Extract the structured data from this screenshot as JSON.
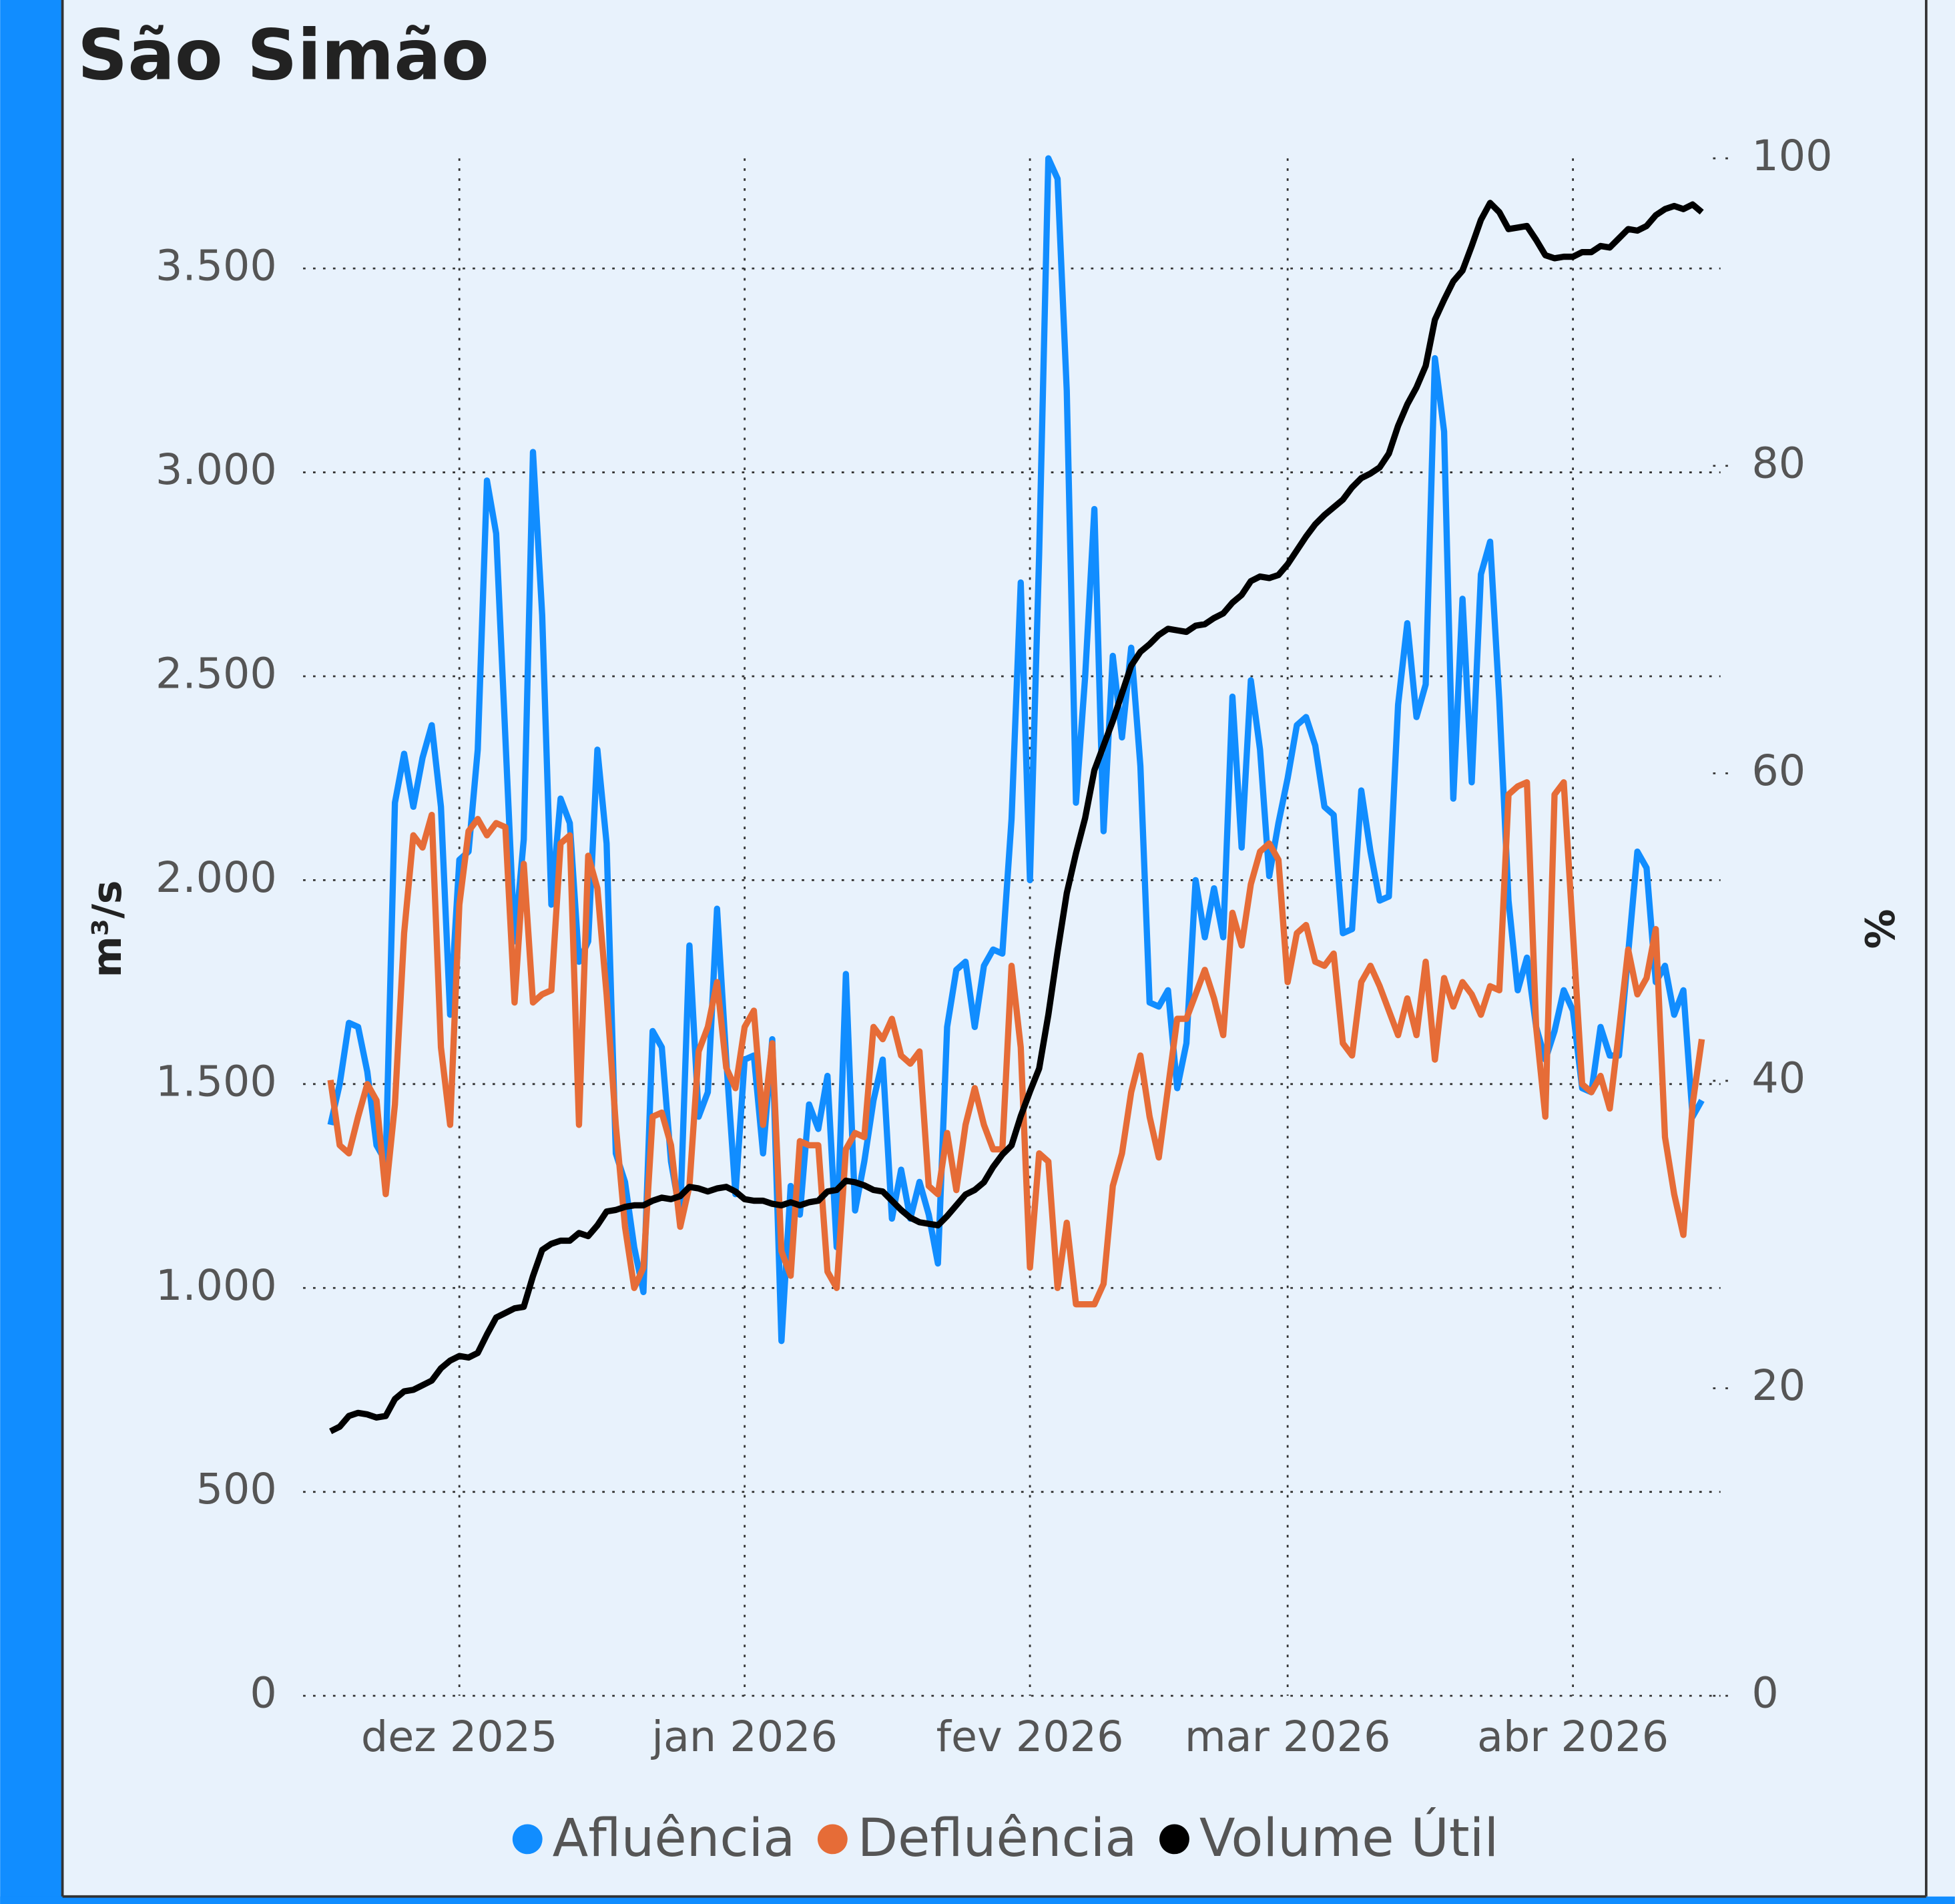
{
  "chart_data": {
    "type": "line",
    "title": "São Simão",
    "y_label": "m³/s",
    "y2_label": "%",
    "grid": true,
    "legend": "bottom",
    "categories": [
      null,
      null,
      null,
      null,
      null,
      null,
      null,
      null,
      null,
      null,
      null,
      null,
      null,
      null,
      "dez 2025",
      null,
      null,
      null,
      null,
      null,
      null,
      null,
      null,
      null,
      null,
      null,
      null,
      null,
      null,
      null,
      null,
      null,
      null,
      null,
      null,
      null,
      null,
      null,
      null,
      null,
      null,
      null,
      null,
      null,
      null,
      "jan 2026",
      null,
      null,
      null,
      null,
      null,
      null,
      null,
      null,
      null,
      null,
      null,
      null,
      null,
      null,
      null,
      null,
      null,
      null,
      null,
      null,
      null,
      null,
      null,
      null,
      null,
      null,
      null,
      null,
      null,
      null,
      "fev 2026",
      null,
      null,
      null,
      null,
      null,
      null,
      null,
      null,
      null,
      null,
      null,
      null,
      null,
      null,
      null,
      null,
      null,
      null,
      null,
      null,
      null,
      null,
      null,
      null,
      null,
      null,
      null,
      "mar 2026",
      null,
      null,
      null,
      null,
      null,
      null,
      null,
      null,
      null,
      null,
      null,
      null,
      null,
      null,
      null,
      null,
      null,
      null,
      null,
      null,
      null,
      null,
      null,
      null,
      null,
      null,
      null,
      null,
      null,
      null,
      "abr 2026",
      null,
      null,
      null,
      null,
      null,
      null,
      null,
      null,
      null,
      null,
      null,
      null,
      null,
      null
    ],
    "ylim": [
      0,
      3770
    ],
    "yticks": [
      0,
      500,
      {
        "value": 1000,
        "label": "1.000"
      },
      {
        "value": 1500,
        "label": "1.500"
      },
      {
        "value": 2000,
        "label": "2.000"
      },
      {
        "value": 2500,
        "label": "2.500"
      },
      {
        "value": 3000,
        "label": "3.000"
      },
      {
        "value": 3500,
        "label": "3.500"
      }
    ],
    "y2lim": [
      0,
      100
    ],
    "y2ticks": [
      0,
      20,
      40,
      60,
      80,
      100
    ],
    "series": [
      {
        "name": "Afluência",
        "color": "#118dff",
        "values": [
          1400,
          1500,
          1650,
          1640,
          1530,
          1350,
          1310,
          2190,
          2310,
          2180,
          2300,
          2380,
          2180,
          1670,
          2050,
          2070,
          2320,
          2980,
          2850,
          2350,
          1850,
          2100,
          3050,
          2650,
          1940,
          2200,
          2140,
          1800,
          1850,
          2320,
          2090,
          1330,
          1260,
          1100,
          990,
          1630,
          1590,
          1310,
          1180,
          1840,
          1420,
          1480,
          1930,
          1560,
          1230,
          1560,
          1570,
          1330,
          1610,
          870,
          1250,
          1180,
          1450,
          1390,
          1520,
          1100,
          1770,
          1190,
          1310,
          1460,
          1560,
          1170,
          1290,
          1170,
          1260,
          1180,
          1060,
          1640,
          1780,
          1800,
          1640,
          1790,
          1830,
          1820,
          2150,
          2730,
          2000,
          2800,
          3770,
          3720,
          3200,
          2190,
          2500,
          2910,
          2120,
          2550,
          2350,
          2570,
          2280,
          1700,
          1690,
          1730,
          1490,
          1600,
          2000,
          1860,
          1980,
          1860,
          2450,
          2080,
          2490,
          2320,
          2010,
          2140,
          2250,
          2380,
          2400,
          2330,
          2180,
          2160,
          1870,
          1880,
          2220,
          2070,
          1950,
          1960,
          2430,
          2630,
          2400,
          2480,
          3280,
          3100,
          2200,
          2690,
          2240,
          2750,
          2830,
          2440,
          1950,
          1730,
          1810,
          1640,
          1560,
          1630,
          1730,
          1680,
          1490,
          1480,
          1640,
          1570,
          1570,
          1820,
          2070,
          2030,
          1750,
          1790,
          1670,
          1730,
          1420,
          1460
        ]
      },
      {
        "name": "Defluência",
        "color": "#e66c37",
        "values": [
          1510,
          1350,
          1330,
          1420,
          1500,
          1460,
          1230,
          1450,
          1870,
          2110,
          2080,
          2160,
          1590,
          1400,
          1940,
          2120,
          2150,
          2110,
          2140,
          2130,
          1700,
          2040,
          1700,
          1720,
          1730,
          2090,
          2110,
          1400,
          2060,
          1980,
          1720,
          1400,
          1150,
          1000,
          1050,
          1420,
          1430,
          1350,
          1150,
          1250,
          1580,
          1640,
          1750,
          1540,
          1490,
          1640,
          1680,
          1400,
          1600,
          1090,
          1030,
          1360,
          1350,
          1350,
          1040,
          1000,
          1340,
          1380,
          1370,
          1640,
          1610,
          1660,
          1570,
          1550,
          1580,
          1250,
          1230,
          1380,
          1240,
          1400,
          1490,
          1400,
          1340,
          1340,
          1790,
          1590,
          1050,
          1330,
          1310,
          1000,
          1160,
          960,
          960,
          960,
          1010,
          1250,
          1330,
          1480,
          1570,
          1420,
          1320,
          1490,
          1660,
          1660,
          1720,
          1780,
          1710,
          1620,
          1920,
          1840,
          1990,
          2070,
          2090,
          2050,
          1750,
          1870,
          1890,
          1800,
          1790,
          1820,
          1600,
          1570,
          1750,
          1790,
          1740,
          1680,
          1620,
          1710,
          1620,
          1800,
          1560,
          1760,
          1690,
          1750,
          1720,
          1670,
          1740,
          1730,
          2210,
          2230,
          2240,
          1640,
          1420,
          2210,
          2240,
          1870,
          1500,
          1480,
          1520,
          1440,
          1630,
          1830,
          1720,
          1760,
          1880,
          1370,
          1230,
          1130,
          1450,
          1610
        ]
      },
      {
        "name": "Volume Útil",
        "color": "#000000",
        "axis": "y2",
        "values": [
          17.2,
          17.5,
          18.2,
          18.4,
          18.3,
          18.1,
          18.2,
          19.3,
          19.8,
          19.9,
          20.2,
          20.5,
          21.3,
          21.8,
          22.1,
          22.0,
          22.3,
          23.5,
          24.6,
          24.9,
          25.2,
          25.3,
          27.3,
          29.0,
          29.4,
          29.6,
          29.6,
          30.1,
          29.9,
          30.6,
          31.5,
          31.6,
          31.8,
          31.9,
          31.9,
          32.2,
          32.4,
          32.3,
          32.5,
          33.1,
          33.0,
          32.8,
          33.0,
          33.1,
          32.8,
          32.3,
          32.2,
          32.2,
          32.0,
          31.9,
          32.1,
          31.9,
          32.1,
          32.2,
          32.8,
          32.9,
          33.5,
          33.4,
          33.2,
          32.9,
          32.8,
          32.2,
          31.6,
          31.1,
          30.8,
          30.7,
          30.6,
          31.2,
          31.9,
          32.6,
          32.9,
          33.4,
          34.4,
          35.2,
          35.8,
          37.7,
          39.3,
          40.8,
          44.3,
          48.4,
          52.2,
          54.8,
          57.1,
          60.2,
          61.8,
          63.4,
          65.2,
          67.0,
          67.9,
          68.4,
          69.0,
          69.4,
          69.3,
          69.2,
          69.6,
          69.7,
          70.1,
          70.4,
          71.1,
          71.6,
          72.5,
          72.8,
          72.7,
          72.9,
          73.6,
          74.5,
          75.4,
          76.2,
          76.8,
          77.3,
          77.8,
          78.6,
          79.2,
          79.5,
          79.9,
          80.8,
          82.6,
          84.0,
          85.1,
          86.5,
          89.5,
          90.8,
          92.0,
          92.7,
          94.3,
          96.0,
          97.1,
          96.5,
          95.4,
          95.5,
          95.6,
          94.7,
          93.7,
          93.5,
          93.6,
          93.6,
          93.9,
          93.9,
          94.3,
          94.2,
          94.8,
          95.4,
          95.3,
          95.6,
          96.3,
          96.7,
          96.9,
          96.7,
          97.0,
          96.5
        ]
      }
    ]
  }
}
